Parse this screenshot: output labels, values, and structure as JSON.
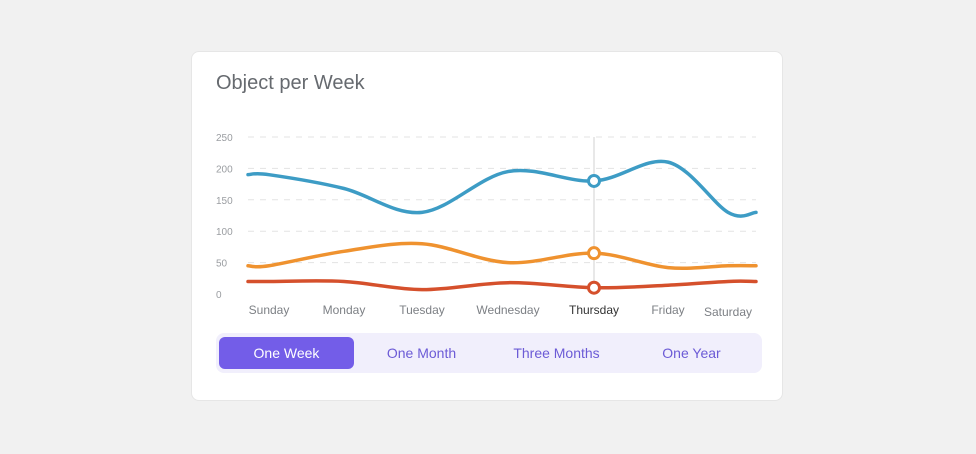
{
  "title": "Object per Week",
  "tabs": [
    {
      "label": "One Week",
      "active": true
    },
    {
      "label": "One Month",
      "active": false
    },
    {
      "label": "Three Months",
      "active": false
    },
    {
      "label": "One Year",
      "active": false
    }
  ],
  "chart_data": {
    "type": "line",
    "title": "Object per Week",
    "categories": [
      "Sunday",
      "Monday",
      "Tuesday",
      "Wednesday",
      "Thursday",
      "Friday",
      "Saturday"
    ],
    "highlighted_category": "Thursday",
    "ylim": [
      0,
      250
    ],
    "yticks": [
      0,
      50,
      100,
      150,
      200,
      250
    ],
    "grid": true,
    "series": [
      {
        "color": "#3d9cc5",
        "values": [
          190,
          168,
          130,
          195,
          180,
          210,
          130
        ]
      },
      {
        "color": "#ef922f",
        "values": [
          45,
          68,
          80,
          50,
          65,
          42,
          45
        ]
      },
      {
        "color": "#d5502c",
        "values": [
          20,
          20,
          7,
          18,
          10,
          14,
          20
        ]
      }
    ]
  }
}
